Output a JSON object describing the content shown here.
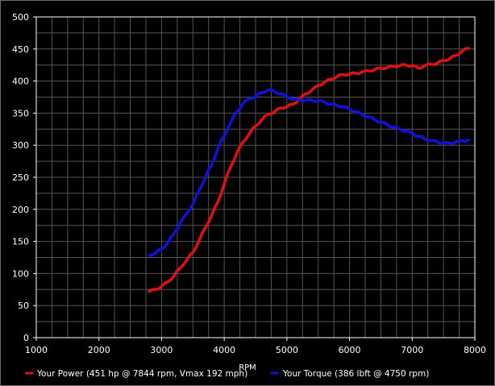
{
  "chart_data": {
    "type": "line",
    "title": "",
    "xlabel": "RPM",
    "ylabel": "",
    "xlim": [
      1000,
      8000
    ],
    "ylim": [
      0,
      500
    ],
    "x_ticks": [
      "1000",
      "2000",
      "3000",
      "4000",
      "5000",
      "6000",
      "7000",
      "8000"
    ],
    "y_ticks": [
      "0",
      "50",
      "100",
      "150",
      "200",
      "250",
      "300",
      "350",
      "400",
      "450",
      "500"
    ],
    "grid": true,
    "legend_position": "bottom",
    "series": [
      {
        "name": "Your Power (451 hp @ 7844 rpm, Vmax 192 mph)",
        "color": "#e01010",
        "x": [
          2800,
          2900,
          3000,
          3100,
          3200,
          3300,
          3400,
          3500,
          3600,
          3700,
          3800,
          3900,
          4000,
          4100,
          4200,
          4300,
          4400,
          4500,
          4600,
          4700,
          4800,
          4900,
          5000,
          5100,
          5200,
          5300,
          5400,
          5500,
          5600,
          5700,
          5800,
          5900,
          6000,
          6100,
          6200,
          6300,
          6400,
          6500,
          6600,
          6700,
          6800,
          6900,
          7000,
          7100,
          7200,
          7300,
          7400,
          7500,
          7600,
          7700,
          7800,
          7900
        ],
        "values": [
          72,
          75,
          80,
          87,
          97,
          109,
          121,
          133,
          152,
          172,
          191,
          212,
          240,
          266,
          288,
          305,
          318,
          330,
          340,
          348,
          352,
          358,
          360,
          364,
          372,
          380,
          386,
          393,
          398,
          403,
          407,
          410,
          411,
          412,
          414,
          416,
          418,
          420,
          421,
          423,
          424,
          425,
          424,
          420,
          424,
          426,
          428,
          432,
          435,
          440,
          447,
          451
        ]
      },
      {
        "name": "Your Torque (386 lbft @ 4750 rpm)",
        "color": "#1010d8",
        "x": [
          2800,
          2900,
          3000,
          3100,
          3200,
          3300,
          3400,
          3500,
          3600,
          3700,
          3800,
          3900,
          4000,
          4100,
          4200,
          4300,
          4400,
          4500,
          4600,
          4700,
          4800,
          4900,
          5000,
          5100,
          5200,
          5300,
          5400,
          5500,
          5600,
          5700,
          5800,
          5900,
          6000,
          6100,
          6200,
          6300,
          6400,
          6500,
          6600,
          6700,
          6800,
          6900,
          7000,
          7100,
          7200,
          7300,
          7400,
          7500,
          7600,
          7700,
          7800,
          7900
        ],
        "values": [
          128,
          132,
          138,
          148,
          163,
          178,
          194,
          208,
          230,
          250,
          270,
          296,
          315,
          335,
          352,
          365,
          372,
          376,
          382,
          386,
          384,
          380,
          376,
          372,
          370,
          370,
          370,
          369,
          367,
          364,
          362,
          360,
          356,
          352,
          348,
          344,
          340,
          336,
          332,
          328,
          325,
          322,
          318,
          314,
          310,
          307,
          305,
          303,
          303,
          305,
          307,
          308
        ]
      }
    ]
  }
}
